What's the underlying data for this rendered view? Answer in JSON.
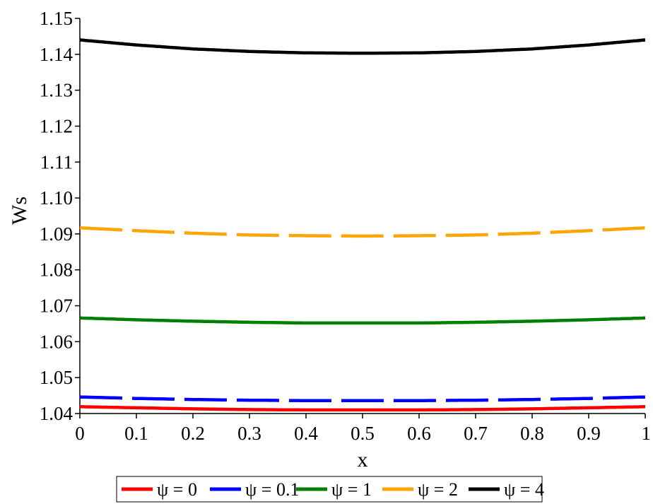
{
  "chart_data": {
    "type": "line",
    "xlabel": "x",
    "ylabel": "Ws",
    "xlim": [
      0,
      1
    ],
    "ylim": [
      1.04,
      1.15
    ],
    "xticks": [
      "0",
      "0.1",
      "0.2",
      "0.3",
      "0.4",
      "0.5",
      "0.6",
      "0.7",
      "0.8",
      "0.9",
      "1"
    ],
    "yticks": [
      "1.04",
      "1.05",
      "1.06",
      "1.07",
      "1.08",
      "1.09",
      "1.10",
      "1.11",
      "1.12",
      "1.13",
      "1.14",
      "1.15"
    ],
    "grid": false,
    "legend_position": "bottom",
    "x": [
      0,
      0.1,
      0.2,
      0.3,
      0.4,
      0.5,
      0.6,
      0.7,
      0.8,
      0.9,
      1
    ],
    "series": [
      {
        "name": "ψ = 0",
        "color": "#ff0000",
        "dash": "solid",
        "values": [
          1.0419,
          1.0416,
          1.0413,
          1.0411,
          1.041,
          1.041,
          1.041,
          1.0411,
          1.0413,
          1.0416,
          1.0419
        ]
      },
      {
        "name": "ψ = 0.1",
        "color": "#0000ff",
        "dash": "dashed",
        "values": [
          1.0446,
          1.0442,
          1.0439,
          1.0437,
          1.0436,
          1.0436,
          1.0436,
          1.0437,
          1.0439,
          1.0442,
          1.0446
        ]
      },
      {
        "name": "ψ = 1",
        "color": "#007f00",
        "dash": "solid",
        "values": [
          1.0666,
          1.0661,
          1.0657,
          1.0654,
          1.0652,
          1.0652,
          1.0652,
          1.0654,
          1.0657,
          1.0661,
          1.0666
        ]
      },
      {
        "name": "ψ = 2",
        "color": "#ffa500",
        "dash": "dashed",
        "values": [
          1.0917,
          1.0909,
          1.0902,
          1.0897,
          1.0895,
          1.0894,
          1.0895,
          1.0897,
          1.0902,
          1.0909,
          1.0917
        ]
      },
      {
        "name": "ψ = 4",
        "color": "#000000",
        "dash": "solid",
        "values": [
          1.144,
          1.1426,
          1.1415,
          1.1408,
          1.1404,
          1.1403,
          1.1404,
          1.1408,
          1.1415,
          1.1426,
          1.144
        ]
      }
    ]
  }
}
